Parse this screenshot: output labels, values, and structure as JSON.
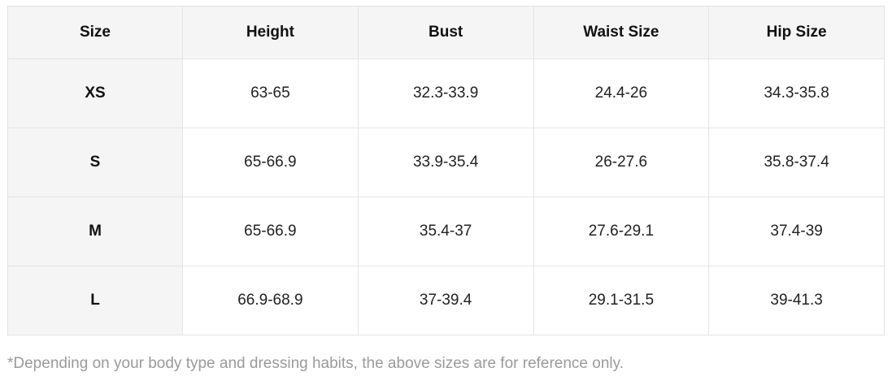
{
  "table": {
    "headers": [
      "Size",
      "Height",
      "Bust",
      "Waist Size",
      "Hip Size"
    ],
    "rows": [
      {
        "size": "XS",
        "height": "63-65",
        "bust": "32.3-33.9",
        "waist": "24.4-26",
        "hip": "34.3-35.8"
      },
      {
        "size": "S",
        "height": "65-66.9",
        "bust": "33.9-35.4",
        "waist": "26-27.6",
        "hip": "35.8-37.4"
      },
      {
        "size": "M",
        "height": "65-66.9",
        "bust": "35.4-37",
        "waist": "27.6-29.1",
        "hip": "37.4-39"
      },
      {
        "size": "L",
        "height": "66.9-68.9",
        "bust": "37-39.4",
        "waist": "29.1-31.5",
        "hip": "39-41.3"
      }
    ]
  },
  "footnote": "*Depending on your body type and dressing habits, the above sizes are for reference only.",
  "colors": {
    "header_bg": "#f5f5f5",
    "border": "#e4e4e4",
    "footnote_text": "#9a9a9a"
  }
}
